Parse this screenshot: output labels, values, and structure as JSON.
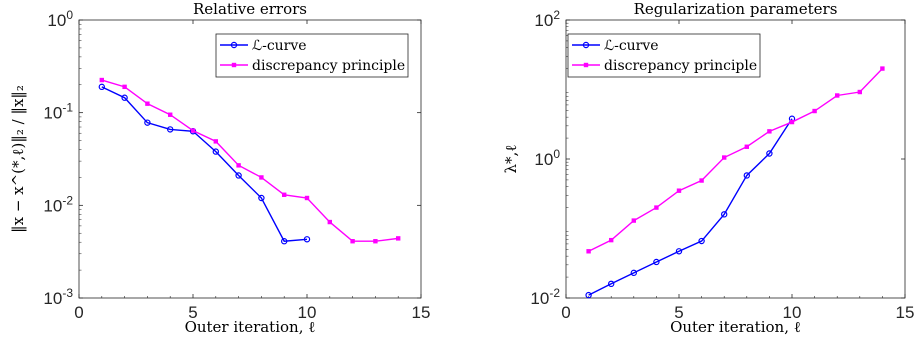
{
  "chart_data": [
    {
      "type": "line",
      "title": "Relative errors",
      "xlabel": "Outer iteration, ℓ",
      "ylabel": "‖x − x^(*,ℓ)‖₂ / ‖x‖₂",
      "yscale": "log",
      "xlim": [
        0,
        15
      ],
      "ylim": [
        0.001,
        1
      ],
      "xticks": [
        "0",
        "5",
        "10",
        "15"
      ],
      "yticks": [
        "10^0",
        "10^-1",
        "10^-2",
        "10^-3"
      ],
      "legend": "top-right",
      "grid": false,
      "series": [
        {
          "name": "ℒ-curve",
          "color": "#0000ff",
          "marker": "circle",
          "x": [
            1,
            2,
            3,
            4,
            5,
            6,
            7,
            8,
            9,
            10
          ],
          "y": [
            0.19,
            0.145,
            0.078,
            0.066,
            0.063,
            0.038,
            0.021,
            0.012,
            0.0041,
            0.0043
          ]
        },
        {
          "name": "discrepancy principle",
          "color": "#ff00ff",
          "marker": "square",
          "x": [
            1,
            2,
            3,
            4,
            5,
            6,
            7,
            8,
            9,
            10,
            11,
            12,
            13,
            14
          ],
          "y": [
            0.225,
            0.19,
            0.125,
            0.095,
            0.064,
            0.049,
            0.027,
            0.02,
            0.013,
            0.012,
            0.0066,
            0.0041,
            0.0041,
            0.0044
          ]
        }
      ]
    },
    {
      "type": "line",
      "title": "Regularization parameters",
      "xlabel": "Outer iteration, ℓ",
      "ylabel": "λ*,ℓ",
      "yscale": "log",
      "xlim": [
        0,
        15
      ],
      "ylim": [
        0.01,
        100
      ],
      "xticks": [
        "0",
        "5",
        "10",
        "15"
      ],
      "yticks": [
        "10^2",
        "10^0",
        "10^-2"
      ],
      "legend": "top-left",
      "grid": false,
      "series": [
        {
          "name": "ℒ-curve",
          "color": "#0000ff",
          "marker": "circle",
          "x": [
            1,
            2,
            3,
            4,
            5,
            6,
            7,
            8,
            9,
            10
          ],
          "y": [
            0.011,
            0.016,
            0.023,
            0.033,
            0.047,
            0.066,
            0.16,
            0.58,
            1.2,
            3.8
          ]
        },
        {
          "name": "discrepancy principle",
          "color": "#ff00ff",
          "marker": "square",
          "x": [
            1,
            2,
            3,
            4,
            5,
            6,
            7,
            8,
            9,
            10,
            11,
            12,
            13,
            14
          ],
          "y": [
            0.047,
            0.068,
            0.13,
            0.2,
            0.35,
            0.49,
            1.05,
            1.5,
            2.5,
            3.4,
            4.9,
            8.2,
            9.2,
            20
          ]
        }
      ]
    }
  ]
}
